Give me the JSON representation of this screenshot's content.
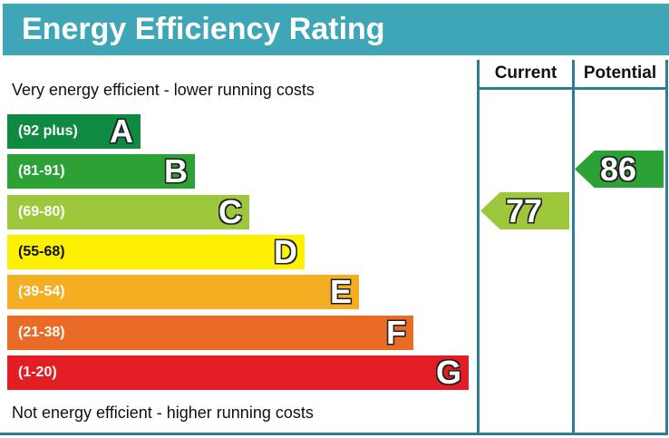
{
  "title": "Energy Efficiency Rating",
  "top_note": "Very energy efficient - lower running costs",
  "bottom_note": "Not energy efficient - higher running costs",
  "columns": {
    "current": "Current",
    "potential": "Potential"
  },
  "chart_data": {
    "type": "bar",
    "title": "Energy Efficiency Rating",
    "categories": [
      "A",
      "B",
      "C",
      "D",
      "E",
      "F",
      "G"
    ],
    "bands": [
      {
        "letter": "A",
        "range": "(92 plus)",
        "color": "#0f8a43"
      },
      {
        "letter": "B",
        "range": "(81-91)",
        "color": "#2ca236"
      },
      {
        "letter": "C",
        "range": "(69-80)",
        "color": "#9dc83c"
      },
      {
        "letter": "D",
        "range": "(55-68)",
        "color": "#fdf000"
      },
      {
        "letter": "E",
        "range": "(39-54)",
        "color": "#f5ae22"
      },
      {
        "letter": "F",
        "range": "(21-38)",
        "color": "#ea6b25"
      },
      {
        "letter": "G",
        "range": "(1-20)",
        "color": "#e21d23"
      }
    ],
    "current": {
      "value": "77",
      "band": "C",
      "color": "#9dc83c"
    },
    "potential": {
      "value": "86",
      "band": "B",
      "color": "#2ca236"
    }
  }
}
